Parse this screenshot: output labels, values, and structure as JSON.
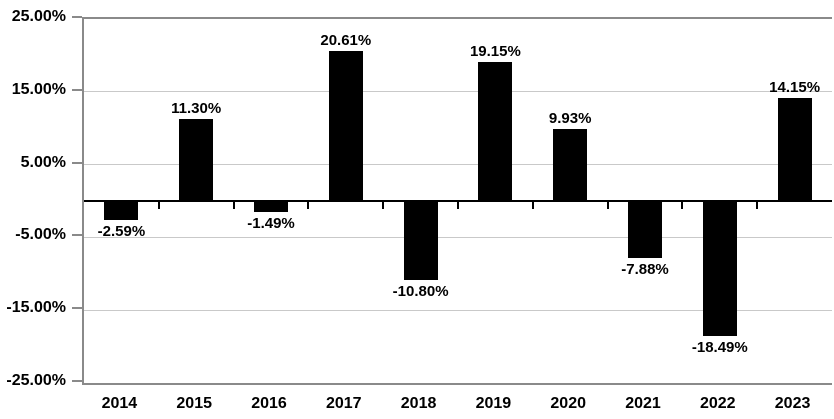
{
  "chart_data": {
    "type": "bar",
    "categories": [
      "2014",
      "2015",
      "2016",
      "2017",
      "2018",
      "2019",
      "2020",
      "2021",
      "2022",
      "2023"
    ],
    "values": [
      -2.59,
      11.3,
      -1.49,
      20.61,
      -10.8,
      19.15,
      9.93,
      -7.88,
      -18.49,
      14.15
    ],
    "data_labels": [
      "-2.59%",
      "11.30%",
      "-1.49%",
      "20.61%",
      "-10.80%",
      "19.15%",
      "9.93%",
      "-7.88%",
      "-18.49%",
      "14.15%"
    ],
    "y_tick_labels": [
      "25.00%",
      "15.00%",
      "5.00%",
      "-5.00%",
      "-15.00%",
      "-25.00%"
    ],
    "y_tick_values": [
      25,
      15,
      5,
      -5,
      -15,
      -25
    ],
    "ylim": [
      -25,
      25
    ],
    "xlabel": "",
    "ylabel": "",
    "title": "",
    "grid": true,
    "legend": false,
    "bar_color": "#000000",
    "interior_gridline_color": "#c9c9c9",
    "axis_border_color": "#8a8a8a",
    "zero_line_color": "#000000",
    "label_color": "#000000"
  }
}
